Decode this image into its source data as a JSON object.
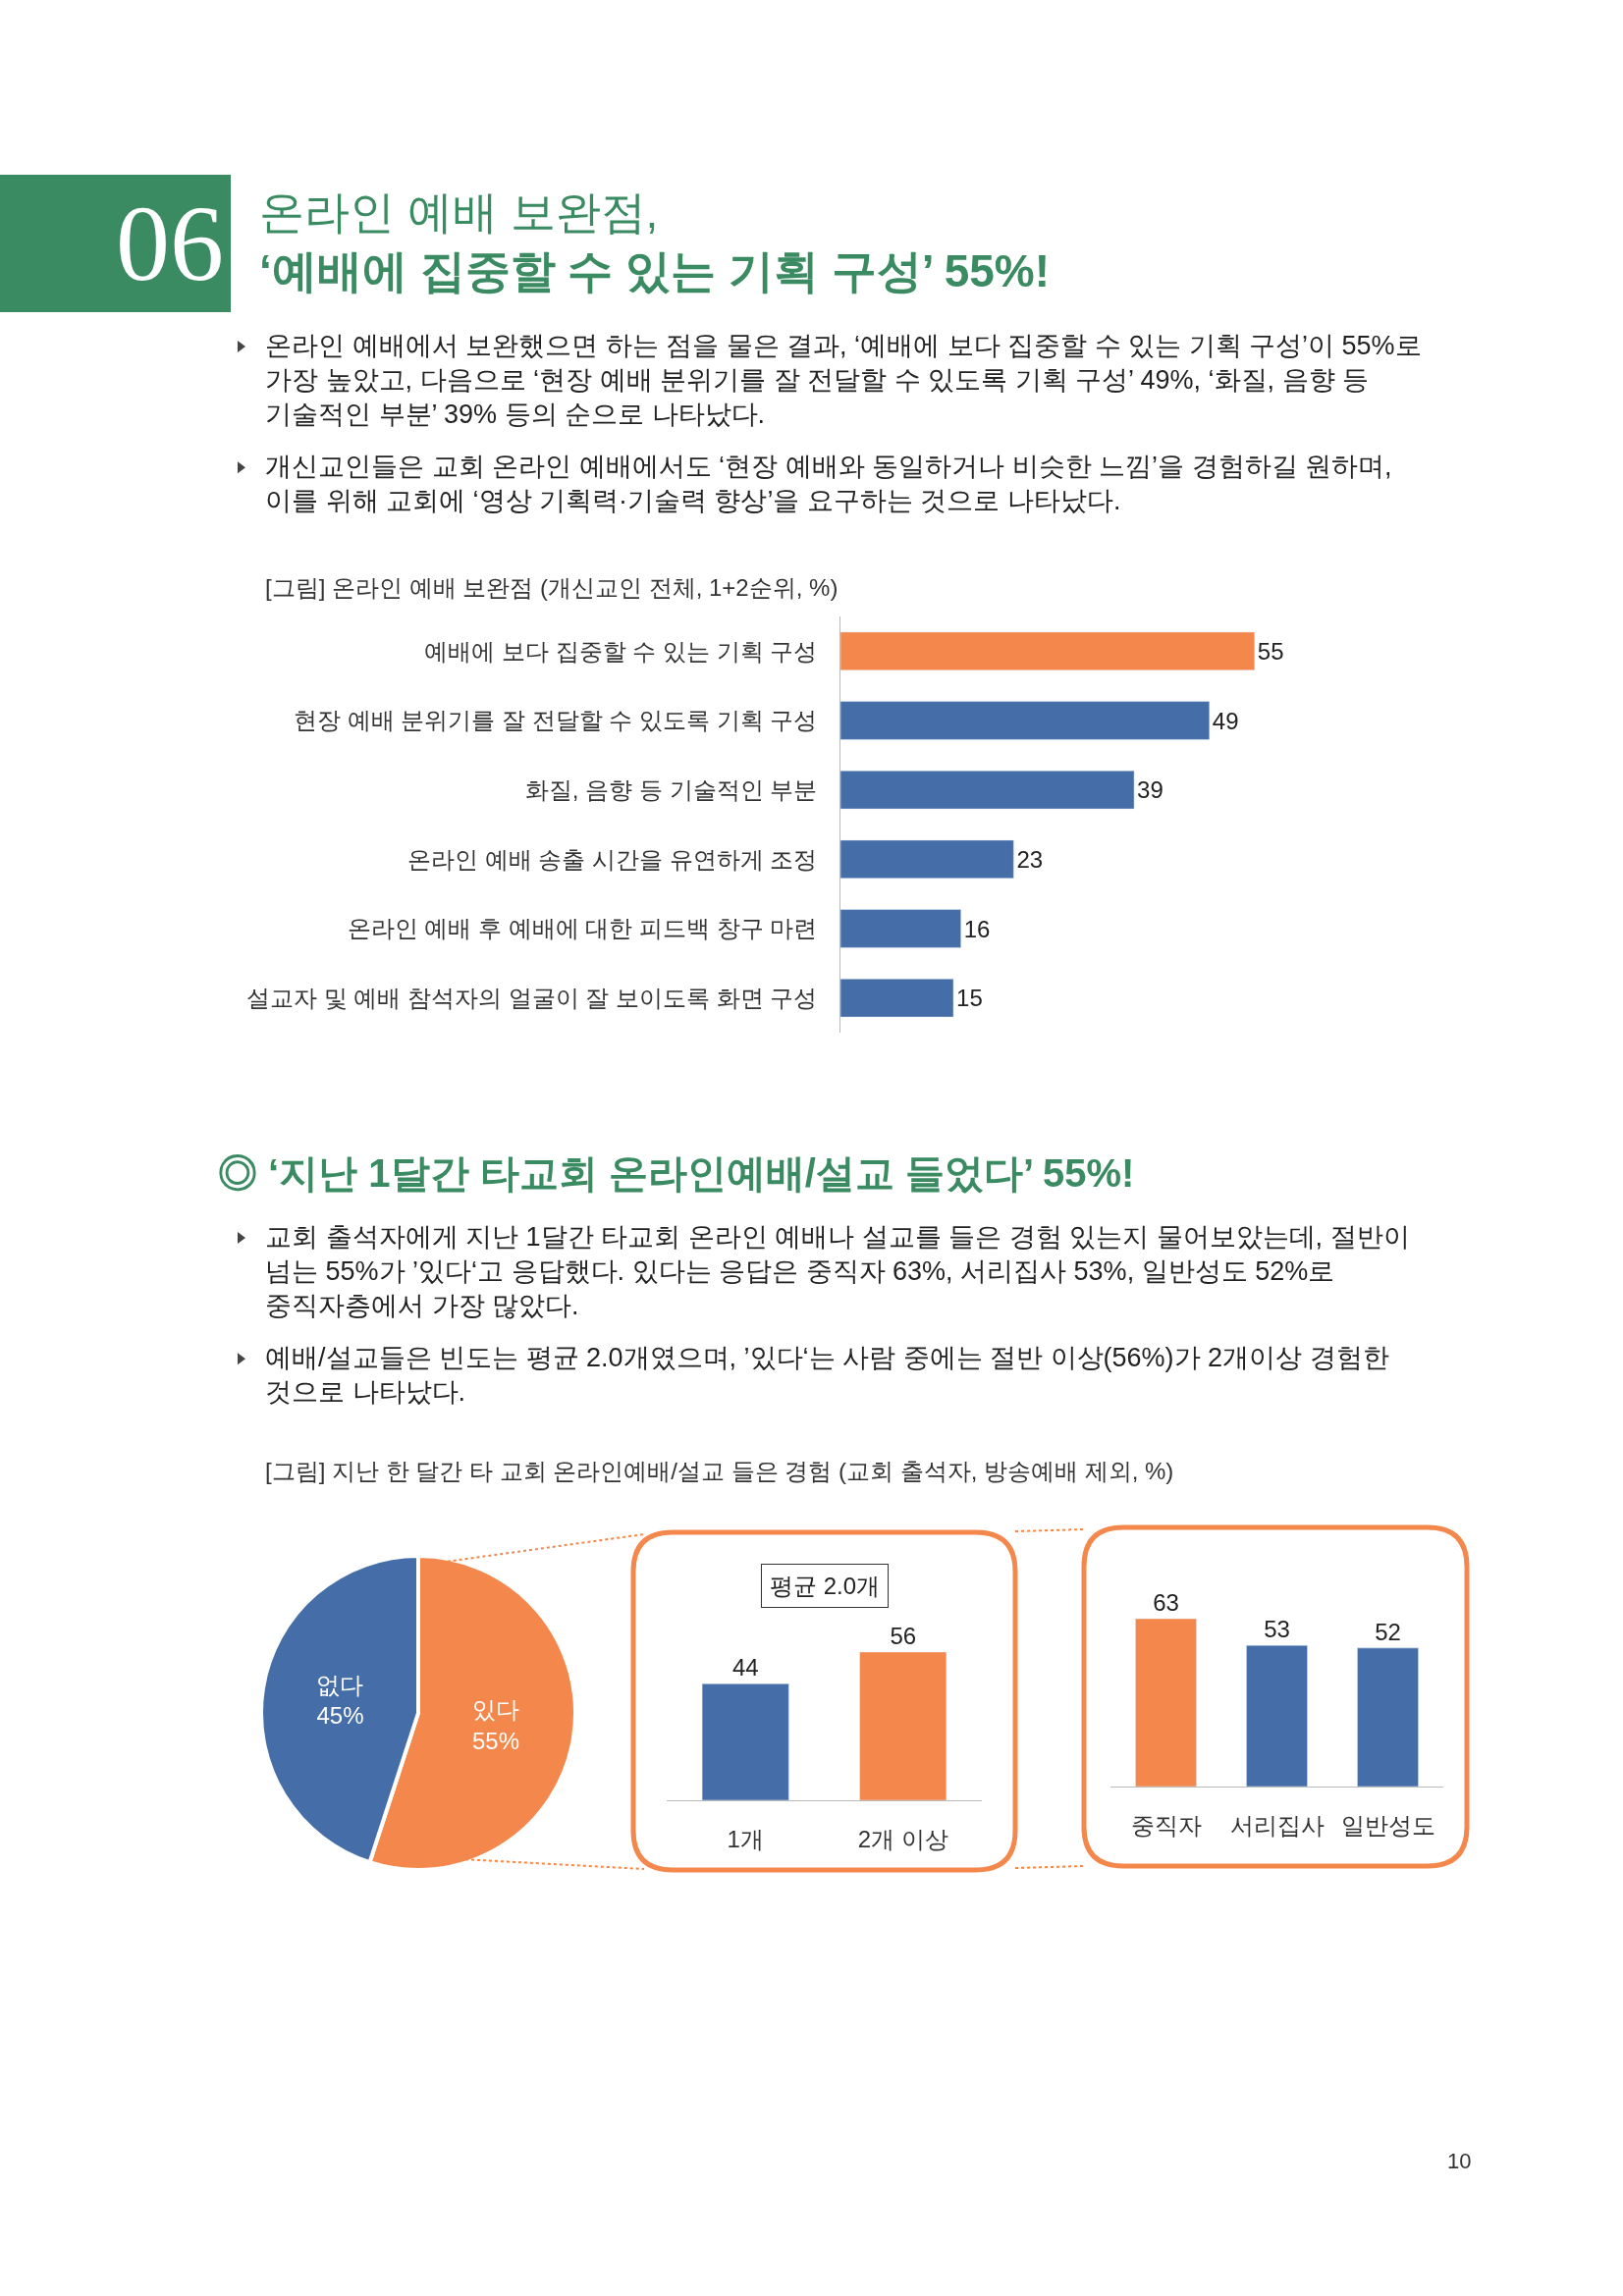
{
  "chart_data": [
    {
      "type": "bar",
      "orientation": "horizontal",
      "title": "온라인 예배 보완점,\n‘예배에 집중할 수 있는 기획 구성’ 55%!",
      "subtitle": "[그림] 온라인 예배 보완점 (개신교인 전체, 1+2순위, %)",
      "annotations": [
        "06",
        "온라인 예배에서 보완했으면 하는 점을 물은 결과, ‘예배에 보다 집중할 수 있는 기획 구성’이 55%로 가장 높았고, 다음으로 ‘현장 예배 분위기를 잘 전달할 수 있도록 기획 구성’ 49%, ‘화질, 음향 등 기술적인 부분’ 39% 등의 순으로 나타났다.",
        "개신교인들은 교회 온라인 예배에서도 ‘현장 예배와 동일하거나 비슷한 느낌’을 경험하길 원하며, 이를 위해 교회에 ‘영상 기획력·기술력 향상’을 요구하는 것으로 나타났다."
      ],
      "categories": [
        "예배에 보다 집중할 수 있는 기획 구성",
        "현장 예배 분위기를 잘 전달할 수 있도록 기획 구성",
        "화질, 음향 등 기술적인 부분",
        "온라인 예배 송출 시간을 유연하게 조정",
        "온라인 예배 후 예배에 대한 피드백 창구 마련",
        "설교자 및 예배 참석자의 얼굴이 잘 보이도록 화면 구성"
      ],
      "values": [
        55,
        49,
        39,
        23,
        16,
        15
      ],
      "colors": [
        "#f4874b",
        "#456ea8",
        "#456ea8",
        "#456ea8",
        "#456ea8",
        "#456ea8"
      ],
      "data_labels": true
    },
    {
      "type": "pie",
      "title": "◎ ‘지난 1달간 타교회 온라인예배/설교 들었다’ 55%!",
      "subtitle": "[그림] 지난 한 달간 타 교회 온라인예배/설교 들은 경험 (교회 출석자, 방송예배 제외, %)",
      "annotations": [
        "교회 출석자에게 지난 1달간 타교회 온라인 예배나 설교를 들은 경험 있는지 물어보았는데, 절반이 넘는 55%가 ’있다‘고 응답했다. 있다는 응답은 중직자 63%, 서리집사 53%, 일반성도 52%로 중직자층에서 가장 많았다.",
        "예배/설교들은 빈도는 평균 2.0개였으며, ’있다‘는 사람 중에는 절반 이상(56%)가 2개이상 경험한 것으로 나타났다."
      ],
      "categories": [
        "있다",
        "없다"
      ],
      "values": [
        55,
        45
      ],
      "colors": [
        "#f4874b",
        "#456ea8"
      ],
      "value_labels": [
        "55%",
        "45%"
      ]
    },
    {
      "type": "bar",
      "annotations": [
        "평균 2.0개"
      ],
      "categories": [
        "1개",
        "2개 이상"
      ],
      "values": [
        44,
        56
      ],
      "colors": [
        "#456ea8",
        "#f4874b"
      ],
      "data_labels": true
    },
    {
      "type": "bar",
      "annotations": [
        "10"
      ],
      "categories": [
        "중직자",
        "서리집사",
        "일반성도"
      ],
      "values": [
        63,
        53,
        52
      ],
      "colors": [
        "#f4874b",
        "#456ea8",
        "#456ea8"
      ],
      "data_labels": true
    }
  ]
}
